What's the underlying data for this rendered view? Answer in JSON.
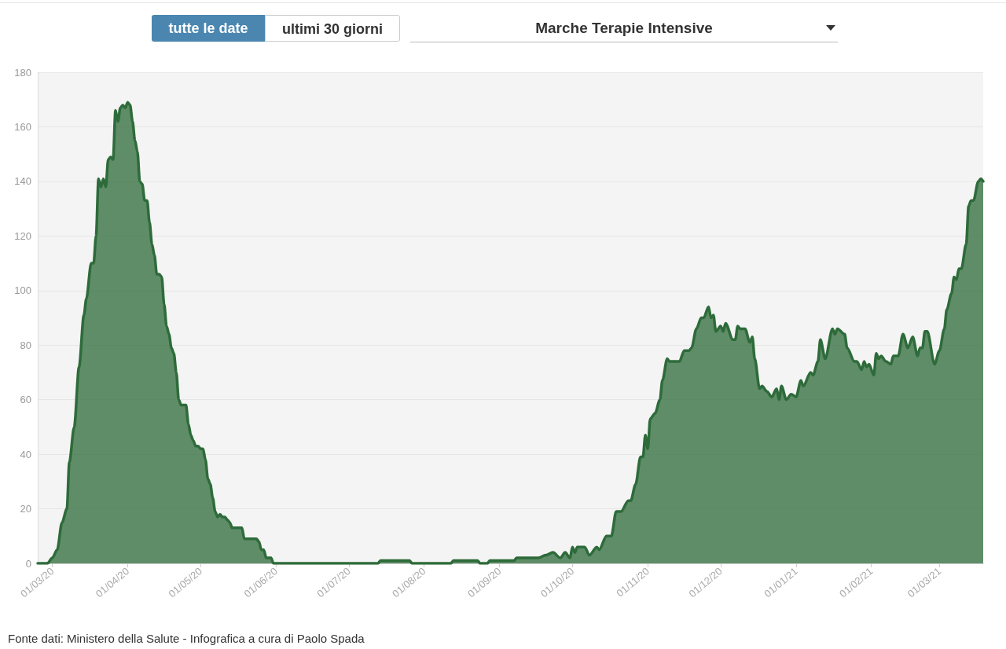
{
  "chart_data": {
    "type": "area",
    "title": "Marche Terapie Intensive",
    "annotations": [
      "tutte le date",
      "ultimi 30 giorni",
      "Fonte dati: Ministero della Salute - Infografica a cura di Paolo Spada"
    ],
    "xlim": [
      "2020-02-24",
      "2021-03-19"
    ],
    "xticks": [
      {
        "value": "2020-03-01",
        "label": "01/03/20"
      },
      {
        "value": "2020-04-01",
        "label": "01/04/20"
      },
      {
        "value": "2020-05-01",
        "label": "01/05/20"
      },
      {
        "value": "2020-06-01",
        "label": "01/06/20"
      },
      {
        "value": "2020-07-01",
        "label": "01/07/20"
      },
      {
        "value": "2020-08-01",
        "label": "01/08/20"
      },
      {
        "value": "2020-09-01",
        "label": "01/09/20"
      },
      {
        "value": "2020-10-01",
        "label": "01/10/20"
      },
      {
        "value": "2020-11-01",
        "label": "01/11/20"
      },
      {
        "value": "2020-12-01",
        "label": "01/12/20"
      },
      {
        "value": "2021-01-01",
        "label": "01/01/21"
      },
      {
        "value": "2021-02-01",
        "label": "01/02/21"
      },
      {
        "value": "2021-03-01",
        "label": "01/03/21"
      }
    ],
    "ylim": [
      0,
      180
    ],
    "yticks": [
      0,
      20,
      40,
      60,
      80,
      100,
      120,
      140,
      160,
      180
    ],
    "grid": "y",
    "series": [
      {
        "color": "#2e6b3a",
        "x": [
          "2020-02-24",
          "2020-02-28",
          "2020-03-01",
          "2020-03-03",
          "2020-03-05",
          "2020-03-07",
          "2020-03-08",
          "2020-03-10",
          "2020-03-12",
          "2020-03-14",
          "2020-03-15",
          "2020-03-17",
          "2020-03-18",
          "2020-03-19",
          "2020-03-20",
          "2020-03-21",
          "2020-03-22",
          "2020-03-23",
          "2020-03-24",
          "2020-03-25",
          "2020-03-26",
          "2020-03-27",
          "2020-03-28",
          "2020-03-29",
          "2020-03-30",
          "2020-03-31",
          "2020-04-01",
          "2020-04-02",
          "2020-04-03",
          "2020-04-04",
          "2020-04-05",
          "2020-04-06",
          "2020-04-07",
          "2020-04-08",
          "2020-04-09",
          "2020-04-10",
          "2020-04-11",
          "2020-04-12",
          "2020-04-13",
          "2020-04-14",
          "2020-04-15",
          "2020-04-16",
          "2020-04-17",
          "2020-04-18",
          "2020-04-19",
          "2020-04-20",
          "2020-04-21",
          "2020-04-22",
          "2020-04-23",
          "2020-04-24",
          "2020-04-25",
          "2020-04-26",
          "2020-04-27",
          "2020-04-28",
          "2020-04-29",
          "2020-04-30",
          "2020-05-01",
          "2020-05-02",
          "2020-05-03",
          "2020-05-04",
          "2020-05-05",
          "2020-05-06",
          "2020-05-07",
          "2020-05-08",
          "2020-05-09",
          "2020-05-10",
          "2020-05-11",
          "2020-05-12",
          "2020-05-13",
          "2020-05-14",
          "2020-05-18",
          "2020-05-19",
          "2020-05-24",
          "2020-05-25",
          "2020-05-26",
          "2020-05-27",
          "2020-05-28",
          "2020-05-30",
          "2020-05-31",
          "2020-07-13",
          "2020-07-14",
          "2020-07-26",
          "2020-07-27",
          "2020-08-12",
          "2020-08-13",
          "2020-08-23",
          "2020-08-24",
          "2020-08-27",
          "2020-08-28",
          "2020-09-07",
          "2020-09-08",
          "2020-09-17",
          "2020-09-20",
          "2020-09-23",
          "2020-09-26",
          "2020-09-28",
          "2020-09-30",
          "2020-10-01",
          "2020-10-02",
          "2020-10-03",
          "2020-10-06",
          "2020-10-08",
          "2020-10-11",
          "2020-10-12",
          "2020-10-15",
          "2020-10-17",
          "2020-10-19",
          "2020-10-21",
          "2020-10-24",
          "2020-10-25",
          "2020-10-27",
          "2020-10-29",
          "2020-10-30",
          "2020-10-31",
          "2020-11-01",
          "2020-11-02",
          "2020-11-04",
          "2020-11-06",
          "2020-11-07",
          "2020-11-09",
          "2020-11-10",
          "2020-11-14",
          "2020-11-16",
          "2020-11-18",
          "2020-11-19",
          "2020-11-21",
          "2020-11-23",
          "2020-11-24",
          "2020-11-26",
          "2020-11-27",
          "2020-11-28",
          "2020-11-29",
          "2020-12-01",
          "2020-12-02",
          "2020-12-03",
          "2020-12-06",
          "2020-12-07",
          "2020-12-08",
          "2020-12-09",
          "2020-12-11",
          "2020-12-13",
          "2020-12-14",
          "2020-12-15",
          "2020-12-17",
          "2020-12-18",
          "2020-12-20",
          "2020-12-22",
          "2020-12-24",
          "2020-12-25",
          "2020-12-26",
          "2020-12-28",
          "2020-12-30",
          "2021-01-01",
          "2021-01-03",
          "2021-01-04",
          "2021-01-07",
          "2021-01-08",
          "2021-01-10",
          "2021-01-11",
          "2021-01-13",
          "2021-01-16",
          "2021-01-17",
          "2021-01-18",
          "2021-01-21",
          "2021-01-22",
          "2021-01-25",
          "2021-01-26",
          "2021-01-28",
          "2021-01-29",
          "2021-01-30",
          "2021-01-31",
          "2021-02-02",
          "2021-02-03",
          "2021-02-04",
          "2021-02-05",
          "2021-02-07",
          "2021-02-09",
          "2021-02-10",
          "2021-02-12",
          "2021-02-14",
          "2021-02-16",
          "2021-02-18",
          "2021-02-20",
          "2021-02-21",
          "2021-02-22",
          "2021-02-23",
          "2021-02-24",
          "2021-02-27",
          "2021-03-01",
          "2021-03-03",
          "2021-03-04",
          "2021-03-06",
          "2021-03-07",
          "2021-03-08",
          "2021-03-09",
          "2021-03-10",
          "2021-03-12",
          "2021-03-13",
          "2021-03-14",
          "2021-03-15",
          "2021-03-17",
          "2021-03-18",
          "2021-03-19"
        ],
        "values": [
          0,
          0,
          2,
          5,
          15,
          20,
          37,
          50,
          72,
          91,
          97,
          110,
          110,
          120,
          141,
          138,
          141,
          138,
          148,
          149,
          148,
          166,
          162,
          167,
          168,
          167,
          169,
          168,
          162,
          155,
          151,
          140,
          139,
          133,
          133,
          125,
          117,
          113,
          106,
          106,
          105,
          95,
          87,
          84,
          79,
          77,
          70,
          60,
          58,
          58,
          58,
          51,
          47,
          45,
          43,
          43,
          42,
          42,
          38,
          31,
          29,
          24,
          19,
          17,
          18,
          17,
          17,
          16,
          15,
          13,
          13,
          9,
          9,
          8,
          5,
          5,
          2,
          2,
          0,
          0,
          1,
          1,
          0,
          0,
          1,
          1,
          0,
          0,
          1,
          1,
          2,
          2,
          3,
          4,
          2,
          4,
          2,
          6,
          4,
          6,
          6,
          3,
          6,
          5,
          10,
          10,
          19,
          19,
          23,
          23,
          29,
          39,
          39,
          47,
          42,
          53,
          55,
          60,
          67,
          75,
          74,
          74,
          78,
          78,
          79,
          86,
          90,
          90,
          94,
          90,
          91,
          85,
          87,
          85,
          88,
          82,
          82,
          87,
          86,
          86,
          81,
          83,
          75,
          64,
          65,
          63,
          61,
          64,
          60,
          65,
          60,
          62,
          61,
          67,
          65,
          70,
          69,
          74,
          82,
          75,
          86,
          84,
          86,
          84,
          79,
          74,
          74,
          71,
          74,
          72,
          73,
          69,
          77,
          75,
          76,
          74,
          73,
          76,
          76,
          84,
          79,
          83,
          76,
          79,
          79,
          85,
          85,
          73,
          78,
          86,
          93,
          99,
          105,
          104,
          108,
          108,
          117,
          131,
          133,
          133,
          140,
          141,
          140
        ]
      }
    ]
  }
}
